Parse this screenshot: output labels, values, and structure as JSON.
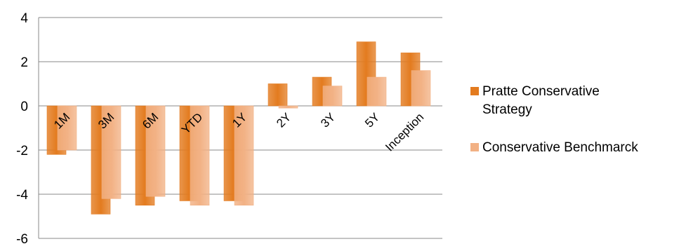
{
  "chart_data": {
    "type": "bar",
    "categories": [
      "1M",
      "3M",
      "6M",
      "YTD",
      "1Y",
      "2Y",
      "3Y",
      "5Y",
      "Inception"
    ],
    "series": [
      {
        "name": "Pratte Conservative Strategy",
        "values": [
          -2.2,
          -4.9,
          -4.5,
          -4.3,
          -4.3,
          1.0,
          1.3,
          2.9,
          2.4
        ],
        "color": "#E37B1F"
      },
      {
        "name": "Conservative Benchmarck",
        "values": [
          -2.0,
          -4.2,
          -4.1,
          -4.5,
          -4.5,
          -0.1,
          0.9,
          1.3,
          1.6
        ],
        "color": "#F2B184"
      }
    ],
    "ylim": [
      -6,
      4
    ],
    "yticks": [
      4,
      2,
      0,
      -2,
      -4,
      -6
    ],
    "grid": true,
    "legend_position": "right"
  }
}
